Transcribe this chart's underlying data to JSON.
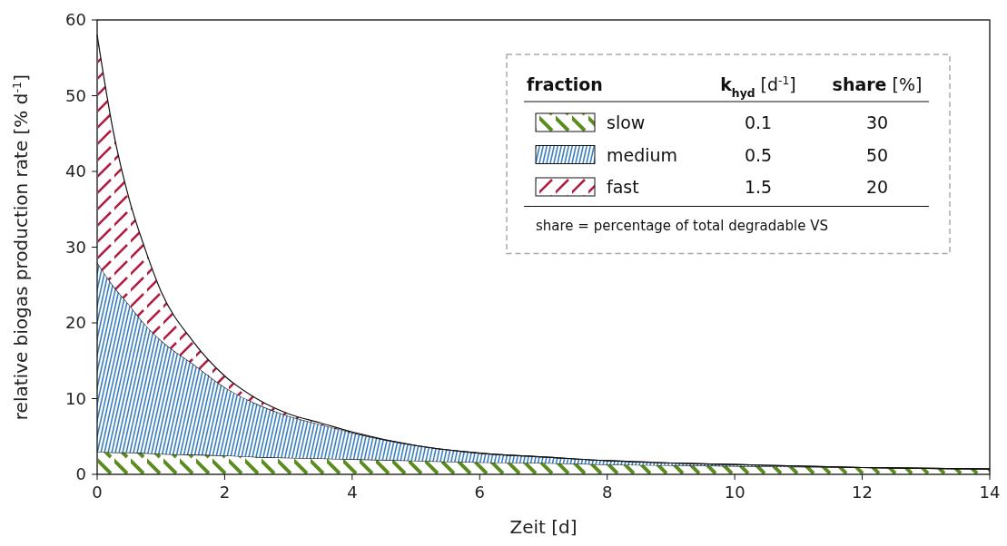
{
  "chart_data": {
    "type": "area",
    "stacked": true,
    "xlabel": "Zeit [d]",
    "ylabel": "relative biogas production rate [% d$^{-1}$]",
    "legend_title": "fraction",
    "legend": "top right",
    "grid": false,
    "x": [
      0,
      0.25,
      0.5,
      0.75,
      1,
      1.5,
      2,
      2.5,
      3,
      3.5,
      4,
      5,
      6,
      7,
      8,
      9,
      10,
      11,
      12,
      13,
      14
    ],
    "xlim": [
      0,
      14
    ],
    "xticks": [
      0,
      2,
      4,
      6,
      8,
      10,
      12,
      14
    ],
    "ylim": [
      0,
      60
    ],
    "yticks": [
      0,
      10,
      20,
      30,
      40,
      50,
      60
    ],
    "series": [
      {
        "name": "slow",
        "color": "#5b8c1f",
        "values": [
          3,
          2.9,
          2.9,
          2.8,
          2.7,
          2.6,
          2.5,
          2.3,
          2.2,
          2.1,
          2,
          1.8,
          1.6,
          1.5,
          1.3,
          1.2,
          1.1,
          1,
          0.9,
          0.8,
          0.7
        ]
      },
      {
        "name": "medium",
        "color": "#3b7fc0",
        "values": [
          25,
          22,
          19.5,
          17,
          15,
          12,
          9,
          7,
          5.5,
          4.5,
          3.5,
          2,
          1.2,
          0.8,
          0.5,
          0.3,
          0.2,
          0.1,
          0,
          0,
          0
        ]
      },
      {
        "name": "fast",
        "color": "#b01c40",
        "values": [
          30,
          20.5,
          14,
          10,
          6.5,
          3,
          1.5,
          0.7,
          0.3,
          0.2,
          0.1,
          0,
          0,
          0,
          0,
          0,
          0,
          0,
          0,
          0,
          0
        ]
      }
    ],
    "annotations": [
      "k$_{hyd}$ [d$^{-1}$]",
      "share [%]",
      "0.1",
      "0.5",
      "1.5",
      "30",
      "50",
      "20",
      "share = percentage of total degradable VS"
    ]
  }
}
